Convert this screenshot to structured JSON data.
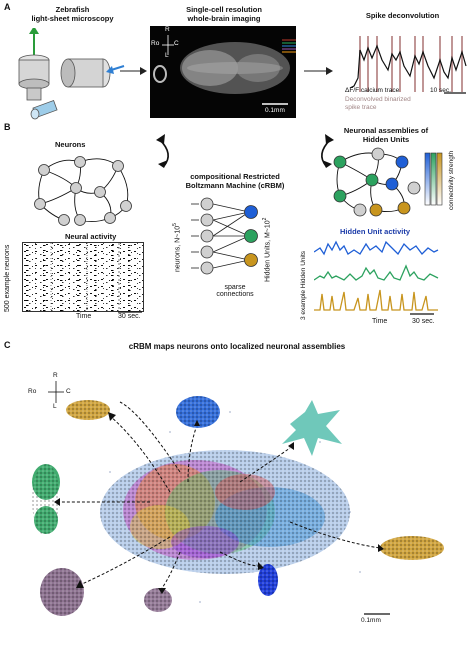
{
  "panel_a": {
    "label": "A",
    "microscopy_title": [
      "Zebrafish",
      "light-sheet microscopy"
    ],
    "imaging_title": [
      "Single-cell resolution",
      "whole-brain imaging"
    ],
    "orientation": {
      "rostral": "Ro",
      "caudal": "C",
      "right": "R",
      "left": "L"
    },
    "scale_label": "0.1mm",
    "deconv_title": "Spike deconvolution",
    "calcium_label": "ΔF/F calcium trace",
    "spike_label": [
      "Deconvolved binarized",
      "spike trace"
    ],
    "time_scale": "10 sec."
  },
  "panel_b": {
    "label": "B",
    "neurons_title": "Neurons",
    "activity_title": "Neural activity",
    "activity_ylabel": "500 example neurons",
    "activity_xlabel": "Time",
    "activity_scale": "30 sec.",
    "crbm_title": [
      "compositional Restricted",
      "Boltzmann Machine (cRBM)"
    ],
    "neurons_axis": "neurons, N~10",
    "neurons_exp": "5",
    "hidden_axis": "Hidden Units, M~10",
    "hidden_exp": "2",
    "sparse_label": [
      "sparse",
      "connections"
    ],
    "assemblies_title": [
      "Neuronal assemblies of",
      "Hidden Units"
    ],
    "connectivity_label": "connectivity strength",
    "hu_activity_title": "Hidden Unit activity",
    "hu_ylabel": "3 example Hidden Units",
    "hu_xlabel": "Time",
    "hu_scale": "30 sec."
  },
  "panel_c": {
    "label": "C",
    "title": "cRBM maps neurons onto localized neuronal assemblies",
    "orientation": {
      "rostral": "Ro",
      "caudal": "C",
      "right": "R",
      "left": "L"
    },
    "scale_label": "0.1mm"
  },
  "colors": {
    "blue": "#1f5fd6",
    "green": "#2ca25f",
    "gold": "#c8951e",
    "node_gray": "#cfcfcf",
    "spike_pink": "#b98a8a",
    "teal": "#5fc2b2",
    "purple": "#7a5a7e",
    "dark_blue": "#1535d8",
    "dark_green": "#2e8b57"
  }
}
